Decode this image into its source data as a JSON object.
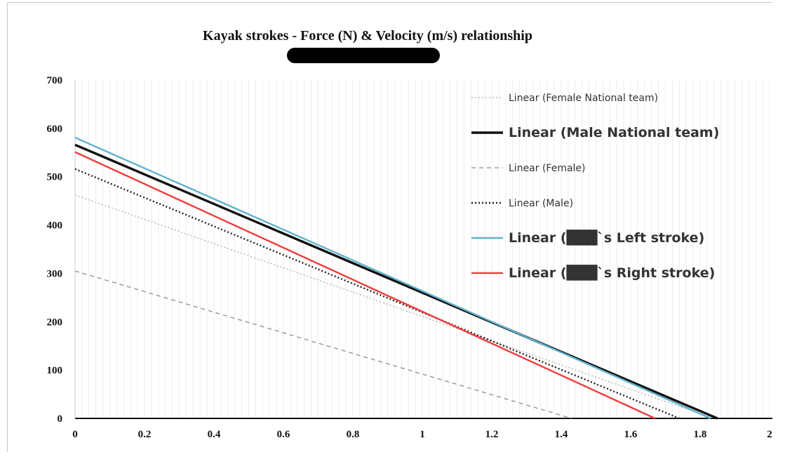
{
  "chart_data": {
    "type": "line",
    "title": "Kayak strokes - Force (N) & Velocity (m/s) relationship",
    "subtitle_redacted": true,
    "xlabel": "",
    "ylabel": "",
    "xlim": [
      0,
      2
    ],
    "ylim": [
      0,
      700
    ],
    "x_ticks": [
      "0",
      "0.2",
      "0.4",
      "0.6",
      "0.8",
      "1",
      "1.2",
      "1.4",
      "1.6",
      "1.8",
      "2"
    ],
    "y_ticks": [
      "0",
      "100",
      "200",
      "300",
      "400",
      "500",
      "600",
      "700"
    ],
    "grid": "vertical minor lines",
    "legend_position": "top-right",
    "series": [
      {
        "name": "Linear (Female National team)",
        "color": "#a6a6a6",
        "style": "dotted",
        "x": [
          0,
          1.84
        ],
        "y": [
          462,
          0
        ]
      },
      {
        "name": "Linear (Male National team)",
        "color": "#111111",
        "style": "solid-bold",
        "x": [
          0,
          1.85
        ],
        "y": [
          566,
          0
        ]
      },
      {
        "name": "Linear (Female)",
        "color": "#8c8c8c",
        "style": "dashed",
        "x": [
          0,
          1.43
        ],
        "y": [
          305,
          0
        ]
      },
      {
        "name": "Linear (Male)",
        "color": "#222222",
        "style": "dotted-bold",
        "x": [
          0,
          1.74
        ],
        "y": [
          516,
          0
        ]
      },
      {
        "name": "Linear (███`s Left stroke)",
        "color": "#5fb3cf",
        "style": "solid",
        "x": [
          0,
          1.83
        ],
        "y": [
          581,
          0
        ]
      },
      {
        "name": "Linear (███`s Right stroke)",
        "color": "#f23c3c",
        "style": "solid",
        "x": [
          0,
          1.67
        ],
        "y": [
          551,
          0
        ]
      }
    ]
  }
}
